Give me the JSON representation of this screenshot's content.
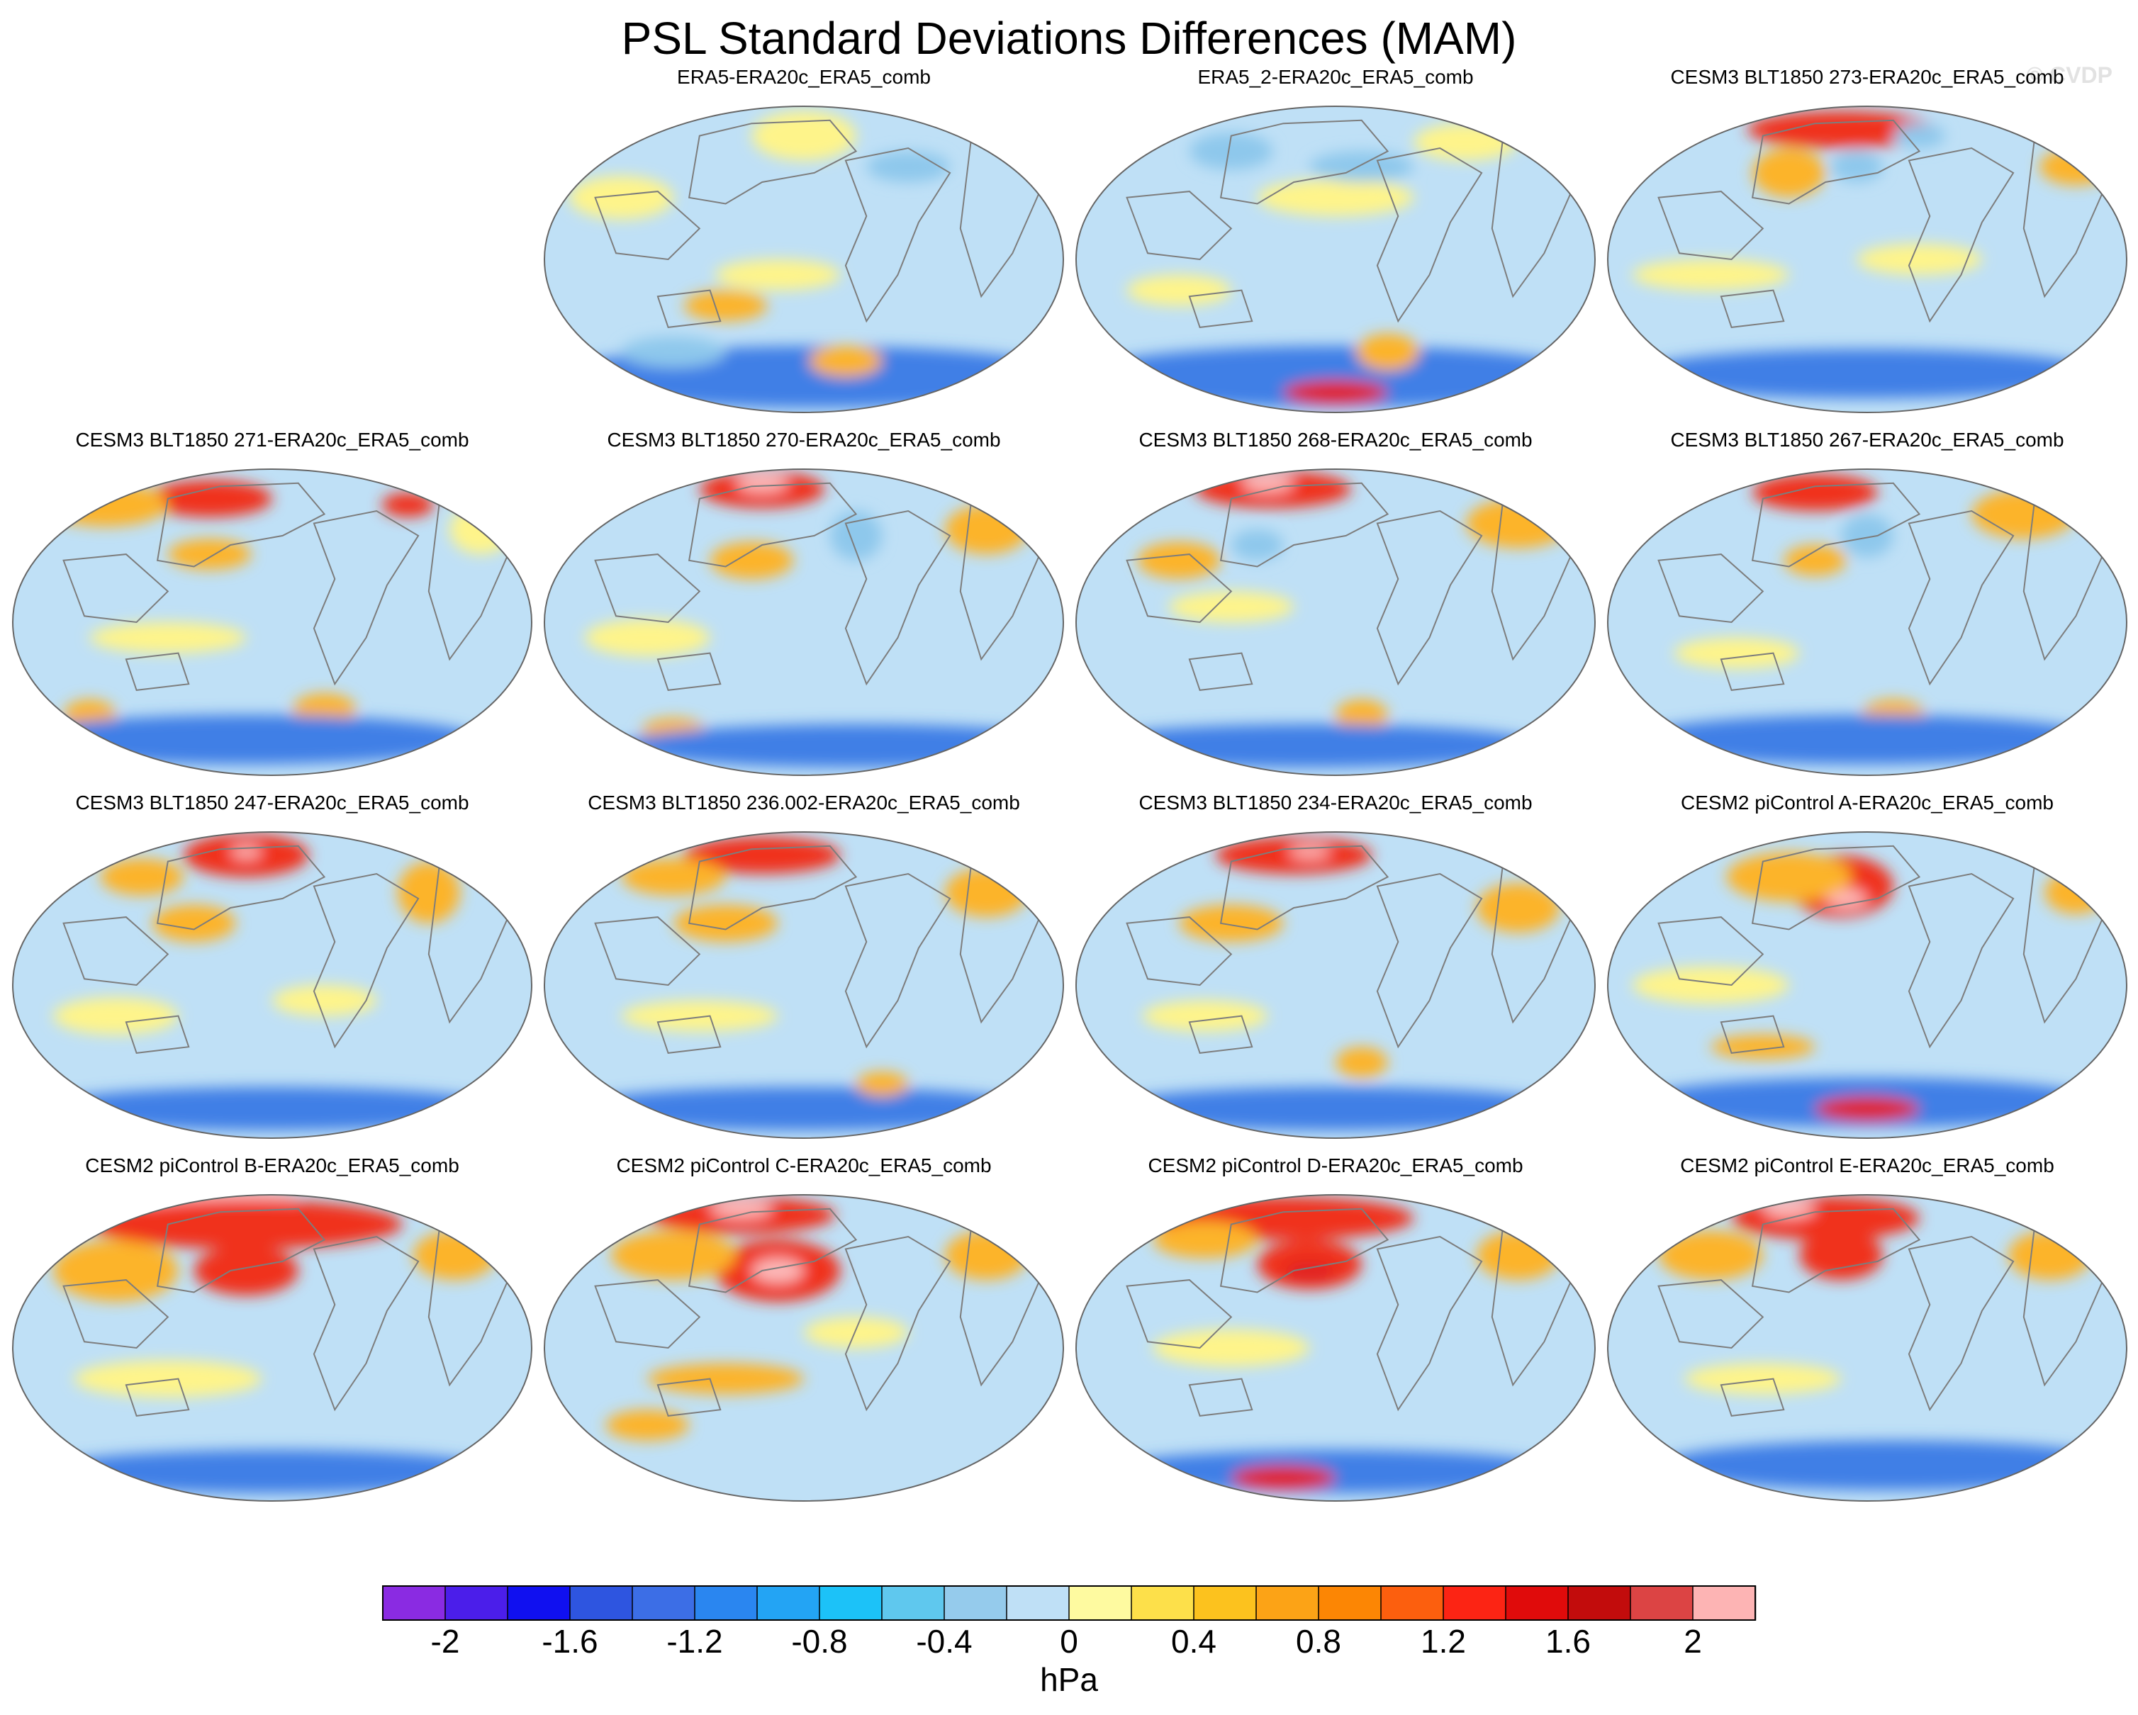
{
  "title": "PSL Standard Deviations Differences (MAM)",
  "watermark": "© CVDP",
  "units": "hPa",
  "colorbar": {
    "tick_labels": [
      "-2",
      "-1.6",
      "-1.2",
      "-0.8",
      "-0.4",
      "0",
      "0.4",
      "0.8",
      "1.2",
      "1.6",
      "2"
    ],
    "colors": [
      "#8a2be2",
      "#4b1eea",
      "#1010f0",
      "#2e55e0",
      "#3c6ee6",
      "#2a86f0",
      "#23a4f4",
      "#1cc2f8",
      "#5fc8ee",
      "#95cbec",
      "#bfe0f6",
      "#fefaa0",
      "#fde04a",
      "#fcc21e",
      "#fca316",
      "#fc8604",
      "#fc5f0e",
      "#fc2414",
      "#e00b0b",
      "#c20c0c",
      "#dc4444",
      "#fdb4b4"
    ],
    "range": [
      -2.2,
      2.2
    ]
  },
  "panels": [
    {
      "label": "ERA5-ERA20c_ERA5_comb",
      "features": [
        [
          "s",
          0.52,
          0.88,
          0.5,
          0.1
        ],
        [
          "o",
          0.58,
          0.83,
          0.07,
          0.05
        ],
        [
          "o",
          0.35,
          0.65,
          0.08,
          0.05
        ],
        [
          "y",
          0.15,
          0.3,
          0.1,
          0.07
        ],
        [
          "y",
          0.5,
          0.1,
          0.1,
          0.08
        ],
        [
          "y",
          0.45,
          0.55,
          0.12,
          0.05
        ],
        [
          "b",
          0.25,
          0.8,
          0.1,
          0.05
        ],
        [
          "b",
          0.7,
          0.2,
          0.08,
          0.05
        ]
      ]
    },
    {
      "label": "ERA5_2-ERA20c_ERA5_comb",
      "features": [
        [
          "s",
          0.5,
          0.88,
          0.5,
          0.1
        ],
        [
          "d",
          0.5,
          0.93,
          0.1,
          0.04
        ],
        [
          "o",
          0.6,
          0.8,
          0.06,
          0.06
        ],
        [
          "y",
          0.5,
          0.3,
          0.15,
          0.06
        ],
        [
          "y",
          0.2,
          0.6,
          0.1,
          0.05
        ],
        [
          "b",
          0.55,
          0.2,
          0.1,
          0.05
        ],
        [
          "b",
          0.3,
          0.15,
          0.08,
          0.06
        ],
        [
          "y",
          0.75,
          0.12,
          0.1,
          0.06
        ]
      ]
    },
    {
      "label": "CESM3 BLT1850 273-ERA20c_ERA5_comb",
      "features": [
        [
          "r",
          0.45,
          0.08,
          0.18,
          0.06
        ],
        [
          "o",
          0.35,
          0.22,
          0.07,
          0.08
        ],
        [
          "o",
          0.9,
          0.2,
          0.07,
          0.06
        ],
        [
          "b",
          0.48,
          0.2,
          0.05,
          0.05
        ],
        [
          "y",
          0.2,
          0.55,
          0.15,
          0.05
        ],
        [
          "y",
          0.6,
          0.5,
          0.12,
          0.05
        ],
        [
          "s",
          0.5,
          0.87,
          0.45,
          0.08
        ],
        [
          "b",
          0.6,
          0.1,
          0.05,
          0.04
        ]
      ]
    },
    {
      "label": "CESM3 BLT1850 271-ERA20c_ERA5_comb",
      "features": [
        [
          "r",
          0.38,
          0.1,
          0.12,
          0.06
        ],
        [
          "o",
          0.38,
          0.28,
          0.08,
          0.05
        ],
        [
          "r",
          0.76,
          0.12,
          0.05,
          0.04
        ],
        [
          "o",
          0.18,
          0.12,
          0.12,
          0.07
        ],
        [
          "o",
          0.15,
          0.8,
          0.05,
          0.05
        ],
        [
          "o",
          0.6,
          0.78,
          0.06,
          0.05
        ],
        [
          "y",
          0.3,
          0.55,
          0.15,
          0.05
        ],
        [
          "s",
          0.45,
          0.88,
          0.45,
          0.08
        ],
        [
          "y",
          0.9,
          0.2,
          0.06,
          0.08
        ]
      ]
    },
    {
      "label": "CESM3 BLT1850 270-ERA20c_ERA5_comb",
      "features": [
        [
          "r",
          0.42,
          0.07,
          0.12,
          0.06
        ],
        [
          "p",
          0.42,
          0.05,
          0.05,
          0.03
        ],
        [
          "o",
          0.4,
          0.3,
          0.08,
          0.06
        ],
        [
          "o",
          0.85,
          0.2,
          0.08,
          0.08
        ],
        [
          "y",
          0.2,
          0.55,
          0.12,
          0.06
        ],
        [
          "o",
          0.25,
          0.85,
          0.06,
          0.04
        ],
        [
          "s",
          0.6,
          0.9,
          0.45,
          0.07
        ],
        [
          "b",
          0.6,
          0.22,
          0.05,
          0.08
        ]
      ]
    },
    {
      "label": "CESM3 BLT1850 268-ERA20c_ERA5_comb",
      "features": [
        [
          "r",
          0.38,
          0.07,
          0.15,
          0.06
        ],
        [
          "p",
          0.37,
          0.05,
          0.05,
          0.03
        ],
        [
          "o",
          0.85,
          0.18,
          0.1,
          0.08
        ],
        [
          "o",
          0.55,
          0.8,
          0.05,
          0.05
        ],
        [
          "y",
          0.3,
          0.45,
          0.12,
          0.05
        ],
        [
          "o",
          0.2,
          0.3,
          0.08,
          0.06
        ],
        [
          "s",
          0.45,
          0.9,
          0.45,
          0.07
        ],
        [
          "b",
          0.35,
          0.25,
          0.05,
          0.05
        ]
      ]
    },
    {
      "label": "CESM3 BLT1850 267-ERA20c_ERA5_comb",
      "features": [
        [
          "r",
          0.4,
          0.08,
          0.12,
          0.06
        ],
        [
          "o",
          0.4,
          0.3,
          0.06,
          0.05
        ],
        [
          "o",
          0.8,
          0.15,
          0.1,
          0.08
        ],
        [
          "b",
          0.5,
          0.22,
          0.05,
          0.07
        ],
        [
          "o",
          0.55,
          0.8,
          0.06,
          0.05
        ],
        [
          "s",
          0.5,
          0.88,
          0.45,
          0.08
        ],
        [
          "y",
          0.25,
          0.6,
          0.12,
          0.05
        ]
      ]
    },
    {
      "label": "CESM3 BLT1850 247-ERA20c_ERA5_comb",
      "features": [
        [
          "r",
          0.45,
          0.08,
          0.12,
          0.07
        ],
        [
          "p",
          0.45,
          0.07,
          0.03,
          0.02
        ],
        [
          "o",
          0.35,
          0.3,
          0.08,
          0.06
        ],
        [
          "o",
          0.8,
          0.2,
          0.06,
          0.1
        ],
        [
          "o",
          0.25,
          0.15,
          0.08,
          0.06
        ],
        [
          "y",
          0.2,
          0.6,
          0.12,
          0.06
        ],
        [
          "s",
          0.5,
          0.9,
          0.45,
          0.07
        ],
        [
          "y",
          0.6,
          0.55,
          0.1,
          0.05
        ]
      ]
    },
    {
      "label": "CESM3 BLT1850 236.002-ERA20c_ERA5_comb",
      "features": [
        [
          "r",
          0.42,
          0.08,
          0.15,
          0.06
        ],
        [
          "o",
          0.35,
          0.3,
          0.1,
          0.06
        ],
        [
          "o",
          0.85,
          0.2,
          0.08,
          0.08
        ],
        [
          "o",
          0.25,
          0.15,
          0.1,
          0.06
        ],
        [
          "y",
          0.3,
          0.6,
          0.15,
          0.05
        ],
        [
          "s",
          0.5,
          0.9,
          0.45,
          0.07
        ],
        [
          "o",
          0.65,
          0.82,
          0.05,
          0.04
        ]
      ]
    },
    {
      "label": "CESM3 BLT1850 234-ERA20c_ERA5_comb",
      "features": [
        [
          "r",
          0.42,
          0.08,
          0.15,
          0.06
        ],
        [
          "p",
          0.45,
          0.07,
          0.04,
          0.02
        ],
        [
          "o",
          0.3,
          0.3,
          0.1,
          0.06
        ],
        [
          "o",
          0.85,
          0.25,
          0.08,
          0.08
        ],
        [
          "o",
          0.55,
          0.75,
          0.05,
          0.05
        ],
        [
          "y",
          0.25,
          0.6,
          0.12,
          0.05
        ],
        [
          "s",
          0.5,
          0.9,
          0.45,
          0.07
        ]
      ]
    },
    {
      "label": "CESM2 piControl A-ERA20c_ERA5_comb",
      "features": [
        [
          "r",
          0.45,
          0.18,
          0.1,
          0.1
        ],
        [
          "p",
          0.46,
          0.22,
          0.04,
          0.03
        ],
        [
          "o",
          0.35,
          0.15,
          0.12,
          0.08
        ],
        [
          "o",
          0.9,
          0.2,
          0.06,
          0.07
        ],
        [
          "y",
          0.2,
          0.5,
          0.15,
          0.06
        ],
        [
          "o",
          0.3,
          0.7,
          0.1,
          0.04
        ],
        [
          "s",
          0.5,
          0.88,
          0.45,
          0.08
        ],
        [
          "d",
          0.5,
          0.9,
          0.1,
          0.04
        ]
      ]
    },
    {
      "label": "CESM2 piControl B-ERA20c_ERA5_comb",
      "features": [
        [
          "p",
          0.4,
          0.02,
          0.15,
          0.04
        ],
        [
          "r",
          0.45,
          0.1,
          0.3,
          0.08
        ],
        [
          "r",
          0.45,
          0.25,
          0.1,
          0.08
        ],
        [
          "o",
          0.2,
          0.25,
          0.12,
          0.1
        ],
        [
          "o",
          0.85,
          0.2,
          0.08,
          0.08
        ],
        [
          "y",
          0.3,
          0.6,
          0.18,
          0.06
        ],
        [
          "s",
          0.5,
          0.9,
          0.45,
          0.07
        ]
      ]
    },
    {
      "label": "CESM2 piControl C-ERA20c_ERA5_comb",
      "features": [
        [
          "r",
          0.38,
          0.07,
          0.18,
          0.06
        ],
        [
          "p",
          0.38,
          0.05,
          0.06,
          0.03
        ],
        [
          "r",
          0.45,
          0.25,
          0.12,
          0.1
        ],
        [
          "p",
          0.45,
          0.25,
          0.05,
          0.04
        ],
        [
          "o",
          0.25,
          0.2,
          0.12,
          0.08
        ],
        [
          "o",
          0.85,
          0.2,
          0.08,
          0.08
        ],
        [
          "o",
          0.35,
          0.6,
          0.15,
          0.05
        ],
        [
          "o",
          0.2,
          0.75,
          0.08,
          0.05
        ],
        [
          "y",
          0.6,
          0.45,
          0.1,
          0.05
        ]
      ]
    },
    {
      "label": "CESM2 piControl D-ERA20c_ERA5_comb",
      "features": [
        [
          "r",
          0.4,
          0.08,
          0.25,
          0.07
        ],
        [
          "r",
          0.45,
          0.23,
          0.1,
          0.08
        ],
        [
          "d",
          0.45,
          0.25,
          0.05,
          0.03
        ],
        [
          "o",
          0.85,
          0.2,
          0.08,
          0.08
        ],
        [
          "o",
          0.25,
          0.15,
          0.1,
          0.06
        ],
        [
          "y",
          0.3,
          0.5,
          0.15,
          0.06
        ],
        [
          "s",
          0.5,
          0.9,
          0.45,
          0.07
        ],
        [
          "d",
          0.4,
          0.92,
          0.1,
          0.04
        ]
      ]
    },
    {
      "label": "CESM2 piControl E-ERA20c_ERA5_comb",
      "features": [
        [
          "r",
          0.42,
          0.08,
          0.18,
          0.07
        ],
        [
          "p",
          0.35,
          0.05,
          0.05,
          0.03
        ],
        [
          "r",
          0.45,
          0.2,
          0.08,
          0.08
        ],
        [
          "o",
          0.85,
          0.2,
          0.08,
          0.08
        ],
        [
          "o",
          0.2,
          0.2,
          0.1,
          0.08
        ],
        [
          "y",
          0.3,
          0.6,
          0.15,
          0.05
        ],
        [
          "s",
          0.55,
          0.88,
          0.45,
          0.08
        ]
      ]
    }
  ]
}
